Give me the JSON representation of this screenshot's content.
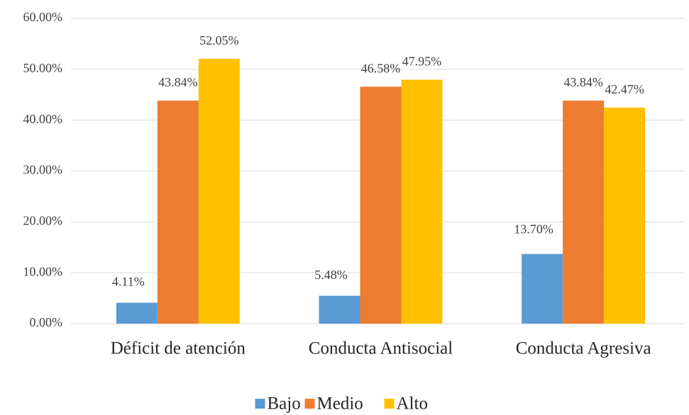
{
  "chart_data": {
    "type": "bar",
    "categories": [
      "Déficit de atención",
      "Conducta Antisocial",
      "Conducta Agresiva"
    ],
    "series": [
      {
        "name": "Bajo",
        "color": "#5b9bd5",
        "values": [
          4.11,
          5.48,
          13.7
        ],
        "value_labels": [
          "4.11%",
          "5.48%",
          "13.70%"
        ]
      },
      {
        "name": "Medio",
        "color": "#ed7d31",
        "values": [
          43.84,
          46.58,
          43.84
        ],
        "value_labels": [
          "43.84%",
          "46.58%",
          "43.84%"
        ]
      },
      {
        "name": "Alto",
        "color": "#ffc000",
        "values": [
          52.05,
          47.95,
          42.47
        ],
        "value_labels": [
          "52.05%",
          "47.95%",
          "42.47%"
        ]
      }
    ],
    "ylim": [
      0,
      60
    ],
    "yticks": [
      {
        "value": 0,
        "label": "0.00%"
      },
      {
        "value": 10,
        "label": "10.00%"
      },
      {
        "value": 20,
        "label": "20.00%"
      },
      {
        "value": 30,
        "label": "30.00%"
      },
      {
        "value": 40,
        "label": "40.00%"
      },
      {
        "value": 50,
        "label": "50.00%"
      },
      {
        "value": 60,
        "label": "60.00%"
      }
    ],
    "grid": true,
    "legend": "bottom"
  }
}
